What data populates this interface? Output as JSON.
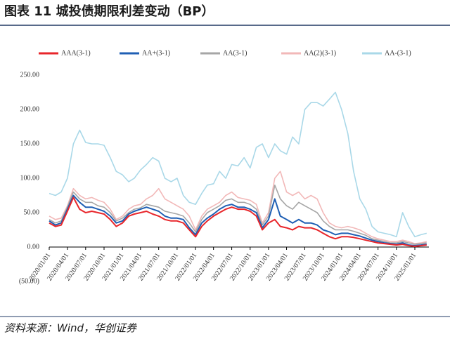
{
  "chart_data": {
    "type": "line",
    "title": "图表 11   城投债期限利差变动（BP）",
    "source": "资料来源：Wind，华创证券",
    "x": [
      "2020/01/01",
      "2020/02/01",
      "2020/03/01",
      "2020/04/01",
      "2020/05/01",
      "2020/06/01",
      "2020/07/01",
      "2020/08/01",
      "2020/09/01",
      "2020/10/01",
      "2020/11/01",
      "2020/12/01",
      "2021/01/01",
      "2021/02/01",
      "2021/03/01",
      "2021/04/01",
      "2021/05/01",
      "2021/06/01",
      "2021/07/01",
      "2021/08/01",
      "2021/09/01",
      "2021/10/01",
      "2021/11/01",
      "2021/12/01",
      "2022/01/01",
      "2022/02/01",
      "2022/03/01",
      "2022/04/01",
      "2022/05/01",
      "2022/06/01",
      "2022/07/01",
      "2022/08/01",
      "2022/09/01",
      "2022/10/01",
      "2022/11/01",
      "2022/12/01",
      "2023/01/01",
      "2023/02/01",
      "2023/03/01",
      "2023/04/01",
      "2023/05/01",
      "2023/06/01",
      "2023/07/01",
      "2023/08/01",
      "2023/09/01",
      "2023/10/01",
      "2023/11/01",
      "2023/12/01",
      "2024/01/01",
      "2024/02/01",
      "2024/03/01",
      "2024/04/01",
      "2024/05/01",
      "2024/06/01",
      "2024/07/01",
      "2024/08/01",
      "2024/09/01",
      "2024/10/01",
      "2024/11/01",
      "2024/12/01",
      "2025/01/01",
      "2025/02/01",
      "2025/03/01"
    ],
    "series": [
      {
        "name": "AAA(3-1)",
        "color": "#e8262b",
        "values": [
          35,
          30,
          32,
          52,
          72,
          55,
          50,
          52,
          50,
          48,
          40,
          30,
          35,
          45,
          48,
          50,
          52,
          48,
          45,
          40,
          38,
          38,
          35,
          25,
          15,
          30,
          38,
          45,
          50,
          55,
          58,
          55,
          55,
          52,
          45,
          25,
          35,
          40,
          30,
          28,
          25,
          30,
          28,
          28,
          25,
          20,
          15,
          12,
          15,
          15,
          14,
          12,
          10,
          8,
          6,
          5,
          4,
          3,
          4,
          2,
          1,
          2,
          3
        ]
      },
      {
        "name": "AA+(3-1)",
        "color": "#1f5fb4",
        "values": [
          38,
          32,
          35,
          55,
          75,
          65,
          58,
          58,
          55,
          52,
          45,
          35,
          38,
          48,
          52,
          55,
          58,
          55,
          52,
          45,
          42,
          42,
          40,
          28,
          18,
          35,
          42,
          48,
          55,
          60,
          62,
          58,
          58,
          55,
          50,
          28,
          40,
          70,
          45,
          40,
          35,
          40,
          35,
          35,
          32,
          25,
          22,
          18,
          20,
          20,
          18,
          16,
          13,
          10,
          8,
          6,
          5,
          4,
          6,
          3,
          2,
          3,
          4
        ]
      },
      {
        "name": "AA(3-1)",
        "color": "#a6a6a6",
        "values": [
          40,
          35,
          38,
          58,
          80,
          70,
          65,
          65,
          60,
          58,
          50,
          38,
          42,
          50,
          55,
          57,
          62,
          60,
          58,
          52,
          50,
          48,
          45,
          35,
          22,
          40,
          50,
          55,
          60,
          68,
          70,
          65,
          65,
          62,
          55,
          32,
          45,
          90,
          70,
          60,
          55,
          65,
          60,
          55,
          50,
          38,
          30,
          25,
          25,
          25,
          23,
          20,
          17,
          12,
          10,
          8,
          6,
          6,
          8,
          6,
          4,
          5,
          6
        ]
      },
      {
        "name": "AA(2)(3-1)",
        "color": "#f2b8b8",
        "values": [
          45,
          40,
          42,
          60,
          85,
          75,
          70,
          72,
          68,
          65,
          55,
          40,
          45,
          55,
          60,
          62,
          70,
          75,
          85,
          70,
          65,
          60,
          55,
          45,
          25,
          45,
          55,
          60,
          65,
          75,
          80,
          72,
          70,
          68,
          62,
          35,
          50,
          100,
          110,
          80,
          75,
          80,
          70,
          75,
          70,
          50,
          35,
          30,
          28,
          30,
          28,
          25,
          20,
          15,
          12,
          10,
          8,
          8,
          10,
          8,
          5,
          6,
          8
        ]
      },
      {
        "name": "AA-(3-1)",
        "color": "#a9d8e8",
        "values": [
          78,
          75,
          80,
          100,
          150,
          170,
          152,
          150,
          150,
          148,
          130,
          110,
          105,
          95,
          100,
          112,
          120,
          130,
          125,
          100,
          95,
          100,
          75,
          65,
          62,
          78,
          90,
          92,
          110,
          100,
          120,
          118,
          130,
          115,
          145,
          150,
          130,
          150,
          140,
          135,
          160,
          150,
          200,
          210,
          210,
          205,
          215,
          225,
          200,
          165,
          110,
          70,
          55,
          30,
          22,
          20,
          18,
          15,
          50,
          30,
          15,
          18,
          20
        ]
      }
    ],
    "ylim": [
      -50,
      250
    ],
    "yticks": [
      {
        "value": -50,
        "label": "(50.00)"
      },
      {
        "value": 0,
        "label": "0.00"
      },
      {
        "value": 50,
        "label": "50.00"
      },
      {
        "value": 100,
        "label": "100.00"
      },
      {
        "value": 150,
        "label": "150.00"
      },
      {
        "value": 200,
        "label": "200.00"
      },
      {
        "value": 250,
        "label": "250.00"
      }
    ],
    "negative_tick_color": "#c00000",
    "xticks": [
      "2020/01/01",
      "2020/04/01",
      "2020/07/01",
      "2020/10/01",
      "2021/01/01",
      "2021/04/01",
      "2021/07/01",
      "2021/10/01",
      "2022/01/01",
      "2022/04/01",
      "2022/07/01",
      "2022/10/01",
      "2023/01/01",
      "2023/04/01",
      "2023/07/01",
      "2023/10/01",
      "2024/01/01",
      "2024/04/01",
      "2024/07/01",
      "2024/10/01",
      "2025/01/01"
    ],
    "grid": false,
    "legend": "top"
  }
}
